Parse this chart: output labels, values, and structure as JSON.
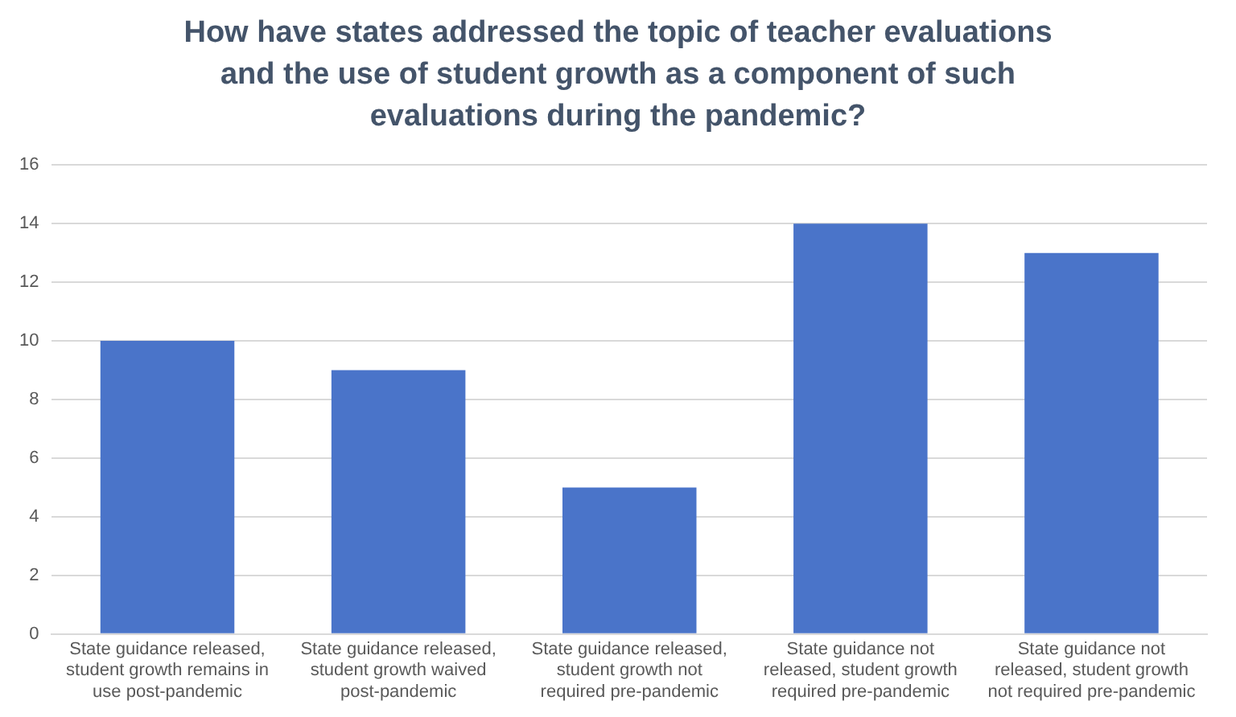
{
  "chart_data": {
    "type": "bar",
    "title": "How have states addressed the topic of teacher evaluations and the use of student growth as a component of such evaluations during the pandemic?",
    "categories": [
      "State guidance released, student growth remains in use post-pandemic",
      "State guidance released, student growth waived post-pandemic",
      "State guidance released, student growth not required pre-pandemic",
      "State guidance not released, student growth required pre-pandemic",
      "State guidance not released, student growth not required pre-pandemic"
    ],
    "values": [
      10,
      9,
      5,
      14,
      13
    ],
    "color": "#4a74c9",
    "ylim": [
      0,
      16
    ],
    "yticks": [
      0,
      2,
      4,
      6,
      8,
      10,
      12,
      14,
      16
    ],
    "grid": "y",
    "legend": false
  }
}
